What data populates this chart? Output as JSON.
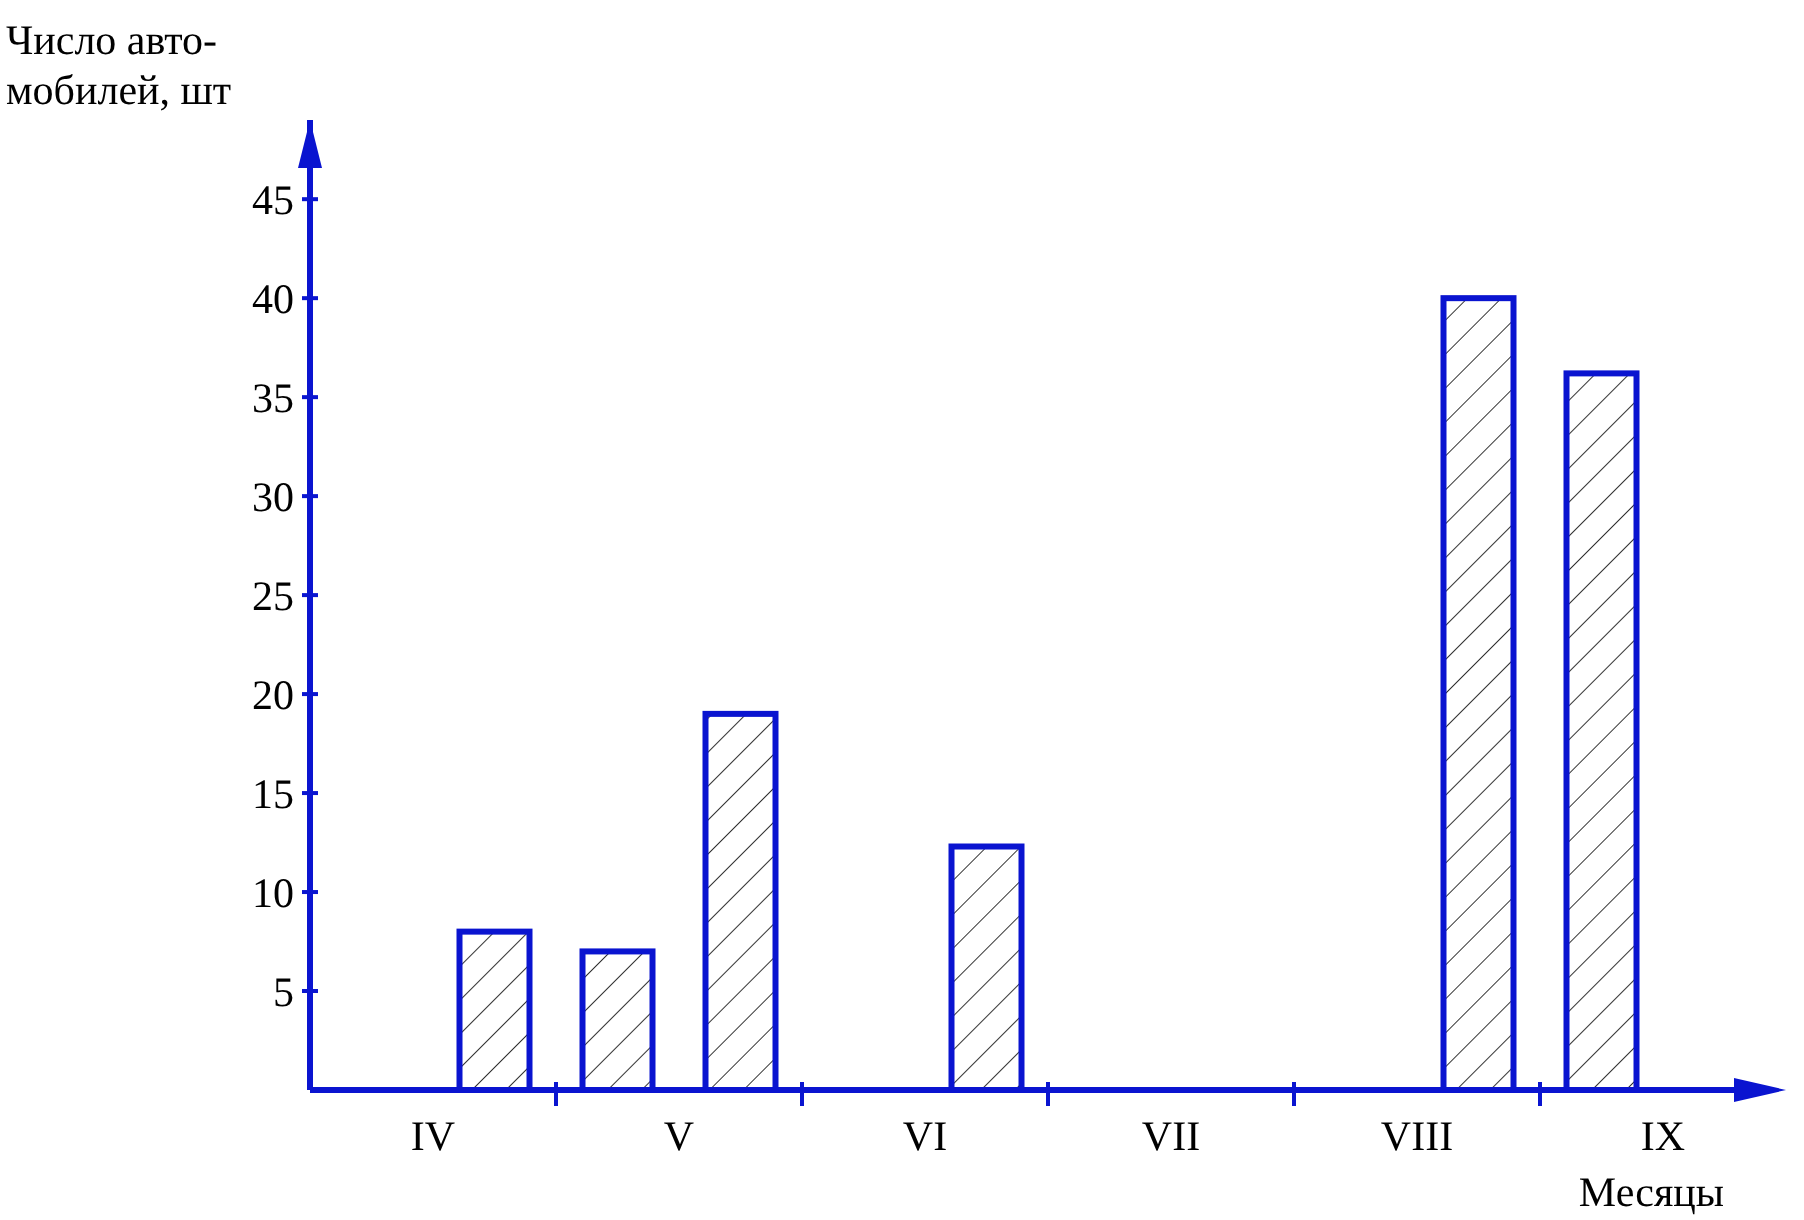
{
  "chart_data": {
    "type": "bar",
    "xlabel": "Месяцы",
    "ylabel": "Число авто-\nмобилей, шт",
    "categories": [
      "IV",
      "V",
      "VI",
      "VII",
      "VIII",
      "IX"
    ],
    "series": [
      {
        "color": "#0a14d0",
        "values": [
          null,
          7,
          null,
          null,
          null,
          36.2
        ]
      },
      {
        "color": "#0a14d0",
        "values": [
          8,
          19,
          12.3,
          null,
          40,
          null
        ]
      }
    ],
    "ylim": [
      0,
      49
    ],
    "yticks": [
      5,
      10,
      15,
      20,
      25,
      30,
      35,
      40,
      45
    ],
    "grid": false
  }
}
